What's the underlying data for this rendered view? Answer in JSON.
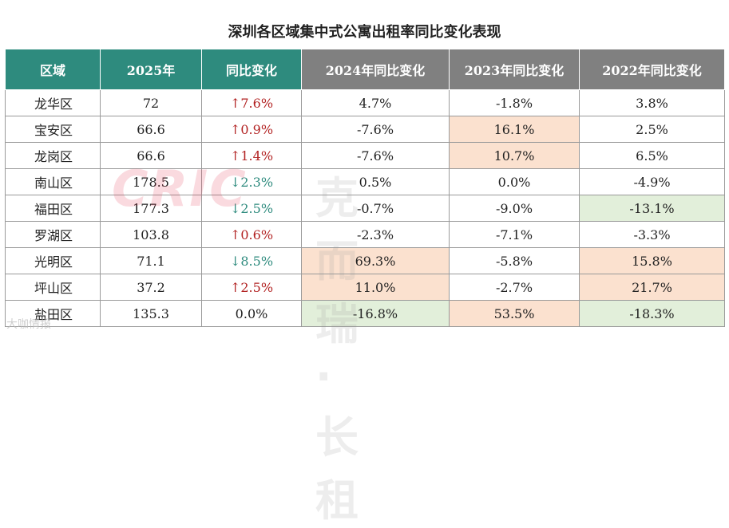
{
  "title": "深圳各区域集中式公寓出租率同比变化表现",
  "watermark": {
    "logo": "CRIC",
    "text": "克而瑞·长租",
    "corner": "大咖情报"
  },
  "colors": {
    "teal": "#2e8b7e",
    "gray": "#808080",
    "up": "#b22222",
    "down": "#2e8b7e",
    "orange_highlight": "#fbe1cf",
    "green_highlight": "#e2efda"
  },
  "chart_data": {
    "type": "table",
    "columns": [
      "区域",
      "2025年",
      "同比变化",
      "2024年同比变化",
      "2023年同比变化",
      "2022年同比变化"
    ],
    "rows": [
      {
        "district": "龙华区",
        "rate_2025": "72",
        "yoy": "↑7.6%",
        "dir": "up",
        "y2024": "4.7%",
        "y2023": "-1.8%",
        "y2022": "3.8%",
        "hl": [
          "",
          "",
          ""
        ]
      },
      {
        "district": "宝安区",
        "rate_2025": "66.6",
        "yoy": "↑0.9%",
        "dir": "up",
        "y2024": "-7.6%",
        "y2023": "16.1%",
        "y2022": "2.5%",
        "hl": [
          "",
          "orange",
          ""
        ]
      },
      {
        "district": "龙岗区",
        "rate_2025": "66.6",
        "yoy": "↑1.4%",
        "dir": "up",
        "y2024": "-7.6%",
        "y2023": "10.7%",
        "y2022": "6.5%",
        "hl": [
          "",
          "orange",
          ""
        ]
      },
      {
        "district": "南山区",
        "rate_2025": "178.5",
        "yoy": "↓2.3%",
        "dir": "down",
        "y2024": "0.5%",
        "y2023": "0.0%",
        "y2022": "-4.9%",
        "hl": [
          "",
          "",
          ""
        ]
      },
      {
        "district": "福田区",
        "rate_2025": "177.3",
        "yoy": "↓2.5%",
        "dir": "down",
        "y2024": "-0.7%",
        "y2023": "-9.0%",
        "y2022": "-13.1%",
        "hl": [
          "",
          "",
          "green"
        ]
      },
      {
        "district": "罗湖区",
        "rate_2025": "103.8",
        "yoy": "↑0.6%",
        "dir": "up",
        "y2024": "-2.3%",
        "y2023": "-7.1%",
        "y2022": "-3.3%",
        "hl": [
          "",
          "",
          ""
        ]
      },
      {
        "district": "光明区",
        "rate_2025": "71.1",
        "yoy": "↓8.5%",
        "dir": "down",
        "y2024": "69.3%",
        "y2023": "-5.8%",
        "y2022": "15.8%",
        "hl": [
          "orange",
          "",
          "orange"
        ]
      },
      {
        "district": "坪山区",
        "rate_2025": "37.2",
        "yoy": "↑2.5%",
        "dir": "up",
        "y2024": "11.0%",
        "y2023": "-2.7%",
        "y2022": "21.7%",
        "hl": [
          "orange",
          "",
          "orange"
        ]
      },
      {
        "district": "盐田区",
        "rate_2025": "135.3",
        "yoy": "0.0%",
        "dir": "flat",
        "y2024": "-16.8%",
        "y2023": "53.5%",
        "y2022": "-18.3%",
        "hl": [
          "green",
          "orange",
          "green"
        ]
      }
    ]
  }
}
